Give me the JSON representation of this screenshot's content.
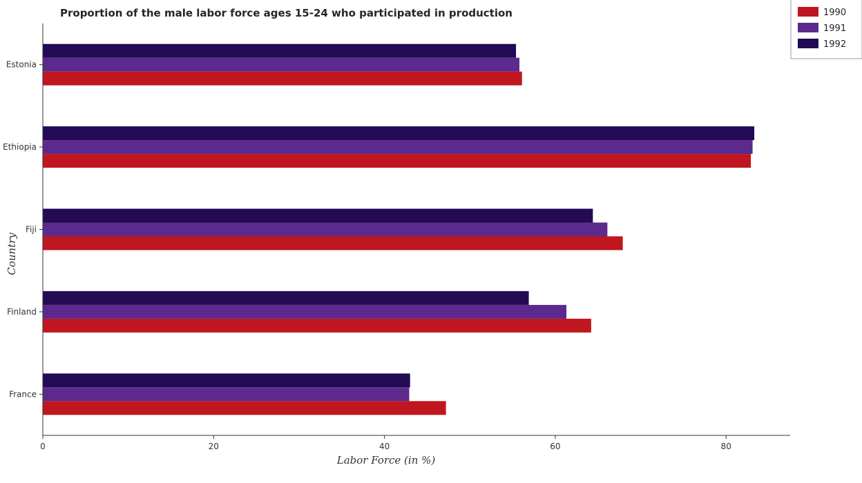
{
  "chart_data": {
    "type": "bar",
    "orientation": "horizontal",
    "title": "Proportion of the male labor force ages 15-24 who participated in production",
    "xlabel": "Labor Force (in %)",
    "ylabel": "Country",
    "categories": [
      "Estonia",
      "Ethiopia",
      "Fiji",
      "Finland",
      "France"
    ],
    "series": [
      {
        "name": "1990",
        "color": "#c0161f",
        "values": [
          56.1,
          82.9,
          67.9,
          64.2,
          47.2
        ]
      },
      {
        "name": "1991",
        "color": "#5c2a8c",
        "values": [
          55.8,
          83.1,
          66.1,
          61.3,
          42.9
        ]
      },
      {
        "name": "1992",
        "color": "#230a55",
        "values": [
          55.4,
          83.3,
          64.4,
          56.9,
          43.0
        ]
      }
    ],
    "xlim": [
      0,
      87.5
    ],
    "xticks": [
      0,
      20,
      40,
      60,
      80
    ],
    "grid": false,
    "legend_position": "top-right"
  }
}
